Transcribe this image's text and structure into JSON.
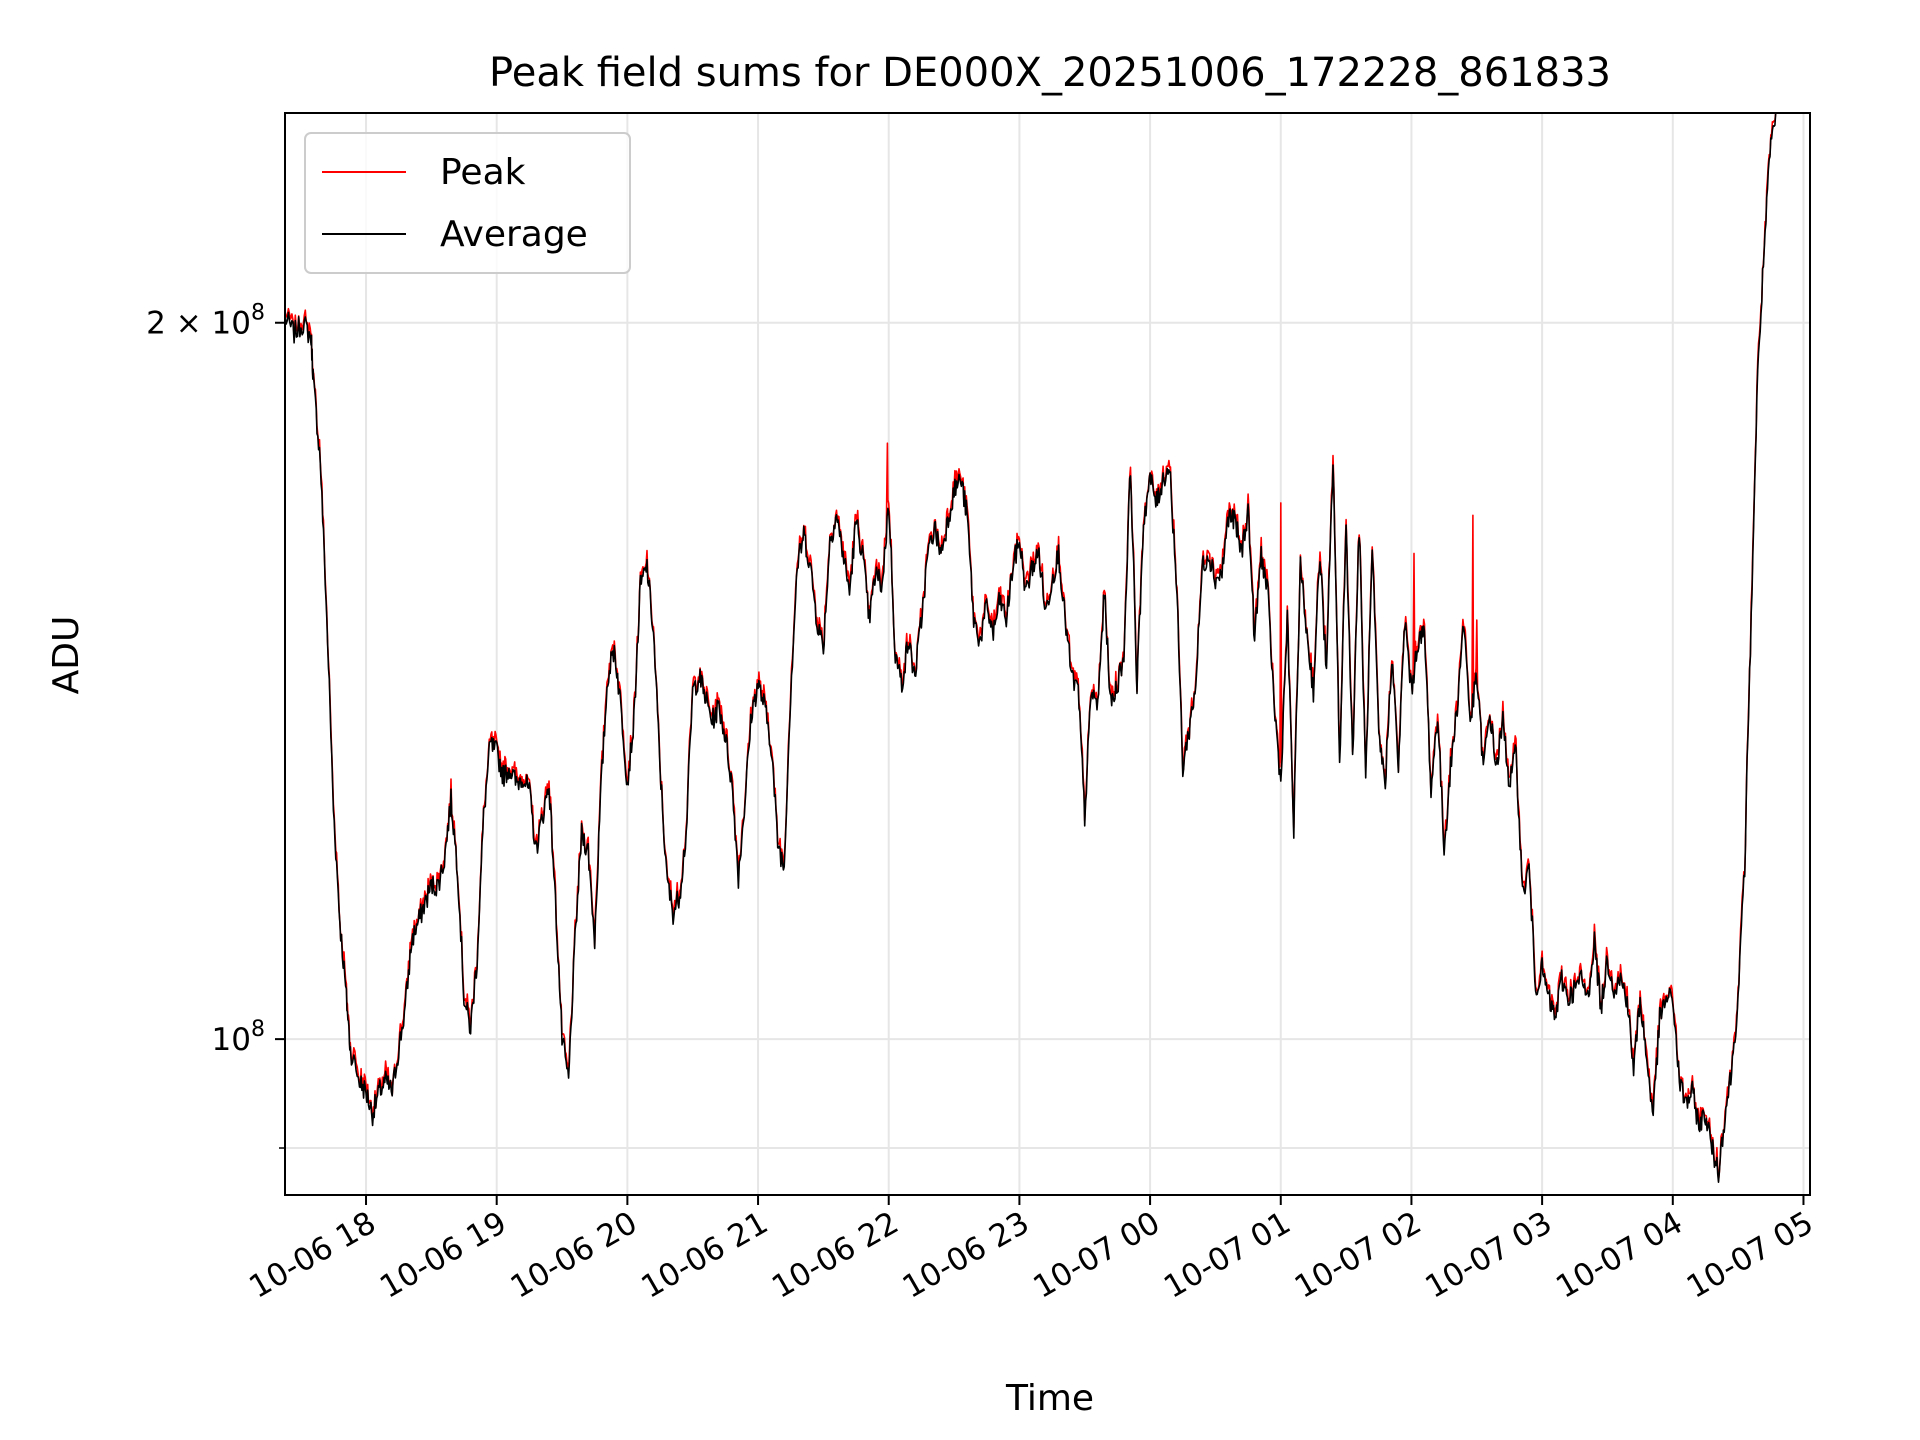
{
  "chart_data": {
    "type": "line",
    "title": "Peak field sums for DE000X_20251006_172228_861833",
    "xlabel": "Time",
    "ylabel": "ADU",
    "yscale": "log",
    "ylim": [
      86000000,
      245000000
    ],
    "xlim_hours": [
      -0.62,
      11.05
    ],
    "grid": true,
    "legend_placement": "top-left",
    "x_ticks": [
      {
        "label": "10-06 18",
        "hour": 0
      },
      {
        "label": "10-06 19",
        "hour": 1
      },
      {
        "label": "10-06 20",
        "hour": 2
      },
      {
        "label": "10-06 21",
        "hour": 3
      },
      {
        "label": "10-06 22",
        "hour": 4
      },
      {
        "label": "10-06 23",
        "hour": 5
      },
      {
        "label": "10-07 00",
        "hour": 6
      },
      {
        "label": "10-07 01",
        "hour": 7
      },
      {
        "label": "10-07 02",
        "hour": 8
      },
      {
        "label": "10-07 03",
        "hour": 9
      },
      {
        "label": "10-07 04",
        "hour": 10
      },
      {
        "label": "10-07 05",
        "hour": 11
      }
    ],
    "y_ticks": [
      {
        "base": "10",
        "exp": "8",
        "coef": "",
        "value": 100000000
      },
      {
        "base": "10",
        "exp": "8",
        "coef": "2 × ",
        "value": 200000000
      }
    ],
    "y_minor_gridlines": [
      90000000
    ],
    "series": [
      {
        "name": "Peak",
        "color": "#ff0000"
      },
      {
        "name": "Average",
        "color": "#000000"
      }
    ],
    "average_points_hours_millions": [
      [
        -0.62,
        201
      ],
      [
        -0.55,
        198
      ],
      [
        -0.48,
        200
      ],
      [
        -0.42,
        197
      ],
      [
        -0.4,
        188
      ],
      [
        -0.35,
        175
      ],
      [
        -0.3,
        150
      ],
      [
        -0.25,
        125
      ],
      [
        -0.2,
        112
      ],
      [
        -0.15,
        104
      ],
      [
        -0.12,
        99
      ],
      [
        -0.05,
        96
      ],
      [
        0.0,
        95
      ],
      [
        0.05,
        93
      ],
      [
        0.1,
        95
      ],
      [
        0.15,
        96
      ],
      [
        0.2,
        95
      ],
      [
        0.25,
        99
      ],
      [
        0.3,
        103
      ],
      [
        0.35,
        110
      ],
      [
        0.4,
        112
      ],
      [
        0.45,
        114
      ],
      [
        0.5,
        116
      ],
      [
        0.55,
        116
      ],
      [
        0.6,
        119
      ],
      [
        0.65,
        126
      ],
      [
        0.7,
        118
      ],
      [
        0.75,
        104
      ],
      [
        0.8,
        101
      ],
      [
        0.85,
        108
      ],
      [
        0.9,
        124
      ],
      [
        0.95,
        133
      ],
      [
        1.0,
        132
      ],
      [
        1.05,
        129
      ],
      [
        1.1,
        130
      ],
      [
        1.15,
        128
      ],
      [
        1.2,
        129
      ],
      [
        1.25,
        127
      ],
      [
        1.3,
        120
      ],
      [
        1.35,
        124
      ],
      [
        1.4,
        128
      ],
      [
        1.45,
        114
      ],
      [
        1.5,
        100
      ],
      [
        1.55,
        96
      ],
      [
        1.6,
        110
      ],
      [
        1.65,
        122
      ],
      [
        1.7,
        120
      ],
      [
        1.75,
        110
      ],
      [
        1.8,
        128
      ],
      [
        1.85,
        142
      ],
      [
        1.9,
        146
      ],
      [
        1.95,
        138
      ],
      [
        2.0,
        128
      ],
      [
        2.05,
        136
      ],
      [
        2.1,
        155
      ],
      [
        2.15,
        158
      ],
      [
        2.2,
        148
      ],
      [
        2.25,
        130
      ],
      [
        2.3,
        117
      ],
      [
        2.35,
        113
      ],
      [
        2.4,
        115
      ],
      [
        2.45,
        122
      ],
      [
        2.5,
        140
      ],
      [
        2.55,
        142
      ],
      [
        2.6,
        139
      ],
      [
        2.65,
        136
      ],
      [
        2.7,
        138
      ],
      [
        2.75,
        134
      ],
      [
        2.8,
        128
      ],
      [
        2.85,
        117
      ],
      [
        2.9,
        126
      ],
      [
        2.95,
        137
      ],
      [
        3.0,
        141
      ],
      [
        3.05,
        138
      ],
      [
        3.1,
        133
      ],
      [
        3.15,
        121
      ],
      [
        3.2,
        118
      ],
      [
        3.25,
        140
      ],
      [
        3.3,
        158
      ],
      [
        3.35,
        163
      ],
      [
        3.4,
        158
      ],
      [
        3.45,
        150
      ],
      [
        3.5,
        146
      ],
      [
        3.55,
        162
      ],
      [
        3.6,
        166
      ],
      [
        3.65,
        160
      ],
      [
        3.7,
        154
      ],
      [
        3.75,
        165
      ],
      [
        3.8,
        160
      ],
      [
        3.85,
        150
      ],
      [
        3.9,
        157
      ],
      [
        3.95,
        155
      ],
      [
        4.0,
        168
      ],
      [
        4.05,
        145
      ],
      [
        4.1,
        141
      ],
      [
        4.15,
        147
      ],
      [
        4.2,
        142
      ],
      [
        4.25,
        150
      ],
      [
        4.3,
        160
      ],
      [
        4.35,
        164
      ],
      [
        4.4,
        160
      ],
      [
        4.45,
        165
      ],
      [
        4.5,
        170
      ],
      [
        4.55,
        172
      ],
      [
        4.6,
        166
      ],
      [
        4.65,
        150
      ],
      [
        4.7,
        147
      ],
      [
        4.75,
        152
      ],
      [
        4.8,
        148
      ],
      [
        4.85,
        153
      ],
      [
        4.9,
        150
      ],
      [
        4.95,
        158
      ],
      [
        5.0,
        162
      ],
      [
        5.05,
        154
      ],
      [
        5.1,
        158
      ],
      [
        5.15,
        160
      ],
      [
        5.2,
        151
      ],
      [
        5.25,
        156
      ],
      [
        5.3,
        160
      ],
      [
        5.35,
        150
      ],
      [
        5.4,
        142
      ],
      [
        5.45,
        140
      ],
      [
        5.5,
        124
      ],
      [
        5.55,
        140
      ],
      [
        5.6,
        138
      ],
      [
        5.65,
        154
      ],
      [
        5.7,
        138
      ],
      [
        5.75,
        141
      ],
      [
        5.8,
        145
      ],
      [
        5.85,
        174
      ],
      [
        5.9,
        140
      ],
      [
        5.95,
        165
      ],
      [
        6.0,
        172
      ],
      [
        6.05,
        168
      ],
      [
        6.1,
        172
      ],
      [
        6.15,
        174
      ],
      [
        6.2,
        156
      ],
      [
        6.25,
        130
      ],
      [
        6.3,
        135
      ],
      [
        6.35,
        141
      ],
      [
        6.4,
        158
      ],
      [
        6.45,
        160
      ],
      [
        6.5,
        156
      ],
      [
        6.55,
        157
      ],
      [
        6.6,
        166
      ],
      [
        6.65,
        165
      ],
      [
        6.7,
        160
      ],
      [
        6.75,
        167
      ],
      [
        6.8,
        147
      ],
      [
        6.85,
        160
      ],
      [
        6.9,
        154
      ],
      [
        6.95,
        138
      ],
      [
        7.0,
        128
      ],
      [
        7.05,
        150
      ],
      [
        7.1,
        122
      ],
      [
        7.15,
        158
      ],
      [
        7.2,
        148
      ],
      [
        7.25,
        140
      ],
      [
        7.3,
        160
      ],
      [
        7.35,
        142
      ],
      [
        7.4,
        175
      ],
      [
        7.45,
        130
      ],
      [
        7.5,
        164
      ],
      [
        7.55,
        131
      ],
      [
        7.6,
        164
      ],
      [
        7.65,
        128
      ],
      [
        7.7,
        160
      ],
      [
        7.75,
        134
      ],
      [
        7.8,
        128
      ],
      [
        7.85,
        145
      ],
      [
        7.9,
        130
      ],
      [
        7.95,
        150
      ],
      [
        8.0,
        140
      ],
      [
        8.05,
        147
      ],
      [
        8.1,
        148
      ],
      [
        8.15,
        127
      ],
      [
        8.2,
        137
      ],
      [
        8.25,
        120
      ],
      [
        8.3,
        130
      ],
      [
        8.35,
        138
      ],
      [
        8.4,
        150
      ],
      [
        8.45,
        136
      ],
      [
        8.5,
        142
      ],
      [
        8.55,
        130
      ],
      [
        8.6,
        137
      ],
      [
        8.65,
        130
      ],
      [
        8.7,
        136
      ],
      [
        8.75,
        128
      ],
      [
        8.8,
        132
      ],
      [
        8.85,
        115
      ],
      [
        8.9,
        118
      ],
      [
        8.95,
        105
      ],
      [
        9.0,
        107
      ],
      [
        9.05,
        104
      ],
      [
        9.1,
        102
      ],
      [
        9.15,
        106
      ],
      [
        9.2,
        104
      ],
      [
        9.25,
        105
      ],
      [
        9.3,
        106
      ],
      [
        9.35,
        104
      ],
      [
        9.4,
        110
      ],
      [
        9.45,
        103
      ],
      [
        9.5,
        108
      ],
      [
        9.55,
        105
      ],
      [
        9.6,
        106
      ],
      [
        9.65,
        104
      ],
      [
        9.7,
        97
      ],
      [
        9.75,
        104
      ],
      [
        9.8,
        98
      ],
      [
        9.85,
        93
      ],
      [
        9.9,
        102
      ],
      [
        9.95,
        104
      ],
      [
        10.0,
        104
      ],
      [
        10.05,
        96
      ],
      [
        10.1,
        94
      ],
      [
        10.15,
        95
      ],
      [
        10.2,
        92
      ],
      [
        10.25,
        93
      ],
      [
        10.3,
        90
      ],
      [
        10.35,
        88
      ],
      [
        10.4,
        93
      ],
      [
        10.45,
        97
      ],
      [
        10.5,
        104
      ],
      [
        10.55,
        118
      ],
      [
        10.6,
        150
      ],
      [
        10.65,
        190
      ],
      [
        10.7,
        215
      ],
      [
        10.75,
        238
      ],
      [
        10.8,
        245
      ]
    ],
    "peak_spikes_hours_millions": [
      [
        3.99,
        178
      ],
      [
        7.0,
        168
      ],
      [
        8.02,
        160
      ],
      [
        8.47,
        166
      ],
      [
        8.5,
        150
      ]
    ]
  }
}
